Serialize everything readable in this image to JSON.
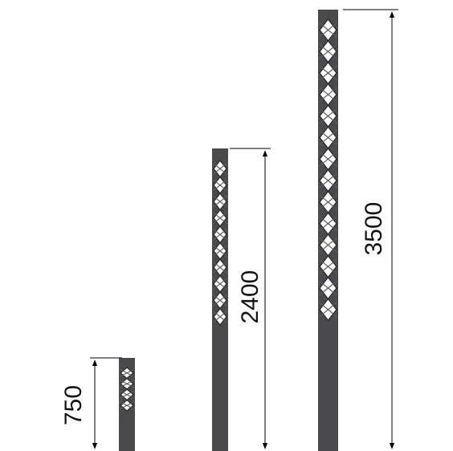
{
  "colors": {
    "background": "#ffffff",
    "post": "#4a4a4c",
    "post_edge": "#2e2e30",
    "lattice_light": "#ffffff",
    "dimension_line": "#000000"
  },
  "posts": [
    {
      "id": "short",
      "height_label": "750"
    },
    {
      "id": "medium",
      "height_label": "2400"
    },
    {
      "id": "tall",
      "height_label": "3500"
    }
  ]
}
